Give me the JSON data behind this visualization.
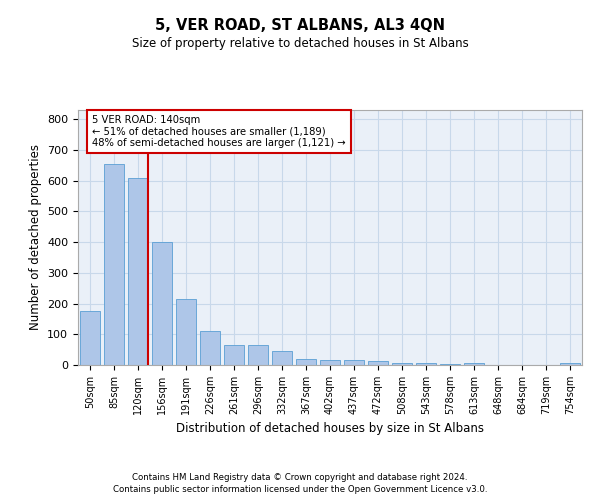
{
  "title": "5, VER ROAD, ST ALBANS, AL3 4QN",
  "subtitle": "Size of property relative to detached houses in St Albans",
  "xlabel": "Distribution of detached houses by size in St Albans",
  "ylabel": "Number of detached properties",
  "footnote1": "Contains HM Land Registry data © Crown copyright and database right 2024.",
  "footnote2": "Contains public sector information licensed under the Open Government Licence v3.0.",
  "bar_labels": [
    "50sqm",
    "85sqm",
    "120sqm",
    "156sqm",
    "191sqm",
    "226sqm",
    "261sqm",
    "296sqm",
    "332sqm",
    "367sqm",
    "402sqm",
    "437sqm",
    "472sqm",
    "508sqm",
    "543sqm",
    "578sqm",
    "613sqm",
    "648sqm",
    "684sqm",
    "719sqm",
    "754sqm"
  ],
  "bar_values": [
    175,
    655,
    610,
    400,
    215,
    110,
    65,
    65,
    45,
    18,
    17,
    15,
    13,
    8,
    8,
    2,
    8,
    1,
    1,
    1,
    8
  ],
  "bar_color": "#aec6e8",
  "bar_edge_color": "#5a9fd4",
  "grid_color": "#c8d8ea",
  "background_color": "#eaf0f8",
  "vline_color": "#cc0000",
  "annotation_text": "5 VER ROAD: 140sqm\n← 51% of detached houses are smaller (1,189)\n48% of semi-detached houses are larger (1,121) →",
  "annotation_box_color": "#cc0000",
  "ylim": [
    0,
    830
  ],
  "yticks": [
    0,
    100,
    200,
    300,
    400,
    500,
    600,
    700,
    800
  ]
}
